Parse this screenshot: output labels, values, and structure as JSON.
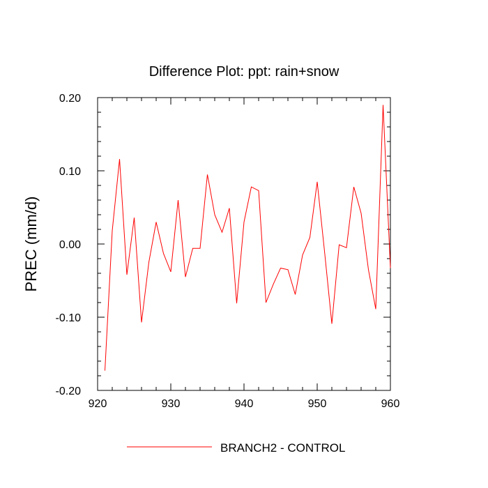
{
  "chart_data": {
    "type": "line",
    "title": "Difference Plot: ppt: rain+snow",
    "xlabel": "",
    "ylabel": "PREC  (mm/d)",
    "xlim": [
      920,
      960
    ],
    "ylim": [
      -0.2,
      0.2
    ],
    "x_ticks": [
      920,
      930,
      940,
      950,
      960
    ],
    "x_tick_labels": [
      "920",
      "930",
      "940",
      "950",
      "960"
    ],
    "y_ticks": [
      -0.2,
      -0.1,
      0.0,
      0.1,
      0.2
    ],
    "y_tick_labels": [
      "-0.20",
      "-0.10",
      "0.00",
      "0.10",
      "0.20"
    ],
    "legend_position": "bottom",
    "grid": false,
    "series": [
      {
        "name": "BRANCH2 - CONTROL",
        "color": "#ff0000",
        "x": [
          921,
          922,
          923,
          924,
          925,
          926,
          927,
          928,
          929,
          930,
          931,
          932,
          933,
          934,
          935,
          936,
          937,
          938,
          939,
          940,
          941,
          942,
          943,
          944,
          945,
          946,
          947,
          948,
          949,
          950,
          951,
          952,
          953,
          954,
          955,
          956,
          957,
          958,
          959,
          960
        ],
        "y": [
          -0.173,
          0.018,
          0.116,
          -0.042,
          0.036,
          -0.107,
          -0.025,
          0.03,
          -0.013,
          -0.038,
          0.06,
          -0.045,
          -0.006,
          -0.006,
          0.095,
          0.04,
          0.016,
          0.049,
          -0.081,
          0.03,
          0.078,
          0.073,
          -0.08,
          -0.055,
          -0.033,
          -0.035,
          -0.069,
          -0.015,
          0.009,
          0.085,
          -0.01,
          -0.109,
          -0.001,
          -0.005,
          0.078,
          0.042,
          -0.035,
          -0.089,
          0.19,
          -0.033
        ]
      }
    ]
  }
}
